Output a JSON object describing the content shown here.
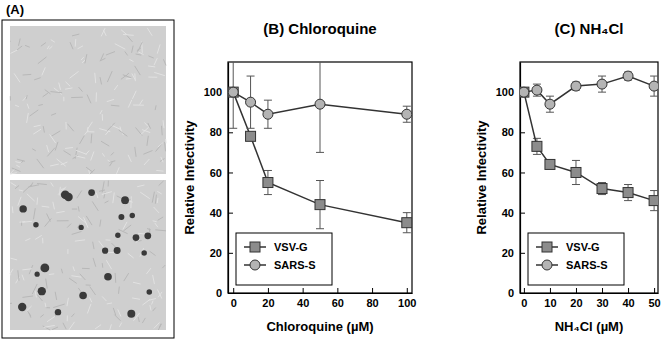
{
  "panel_a": {
    "label": "(A)"
  },
  "chart_data": [
    {
      "type": "line",
      "title": "(B) Chloroquine",
      "x_label": "Chloroquine (µM)",
      "y_label": "Relative Infectivity",
      "x": [
        0,
        10,
        20,
        50,
        100
      ],
      "xlim": [
        -3,
        103
      ],
      "xticks": [
        0,
        20,
        40,
        60,
        80,
        100
      ],
      "ylim": [
        0,
        115
      ],
      "yticks": [
        0,
        20,
        40,
        60,
        80,
        100
      ],
      "legend": "lower left",
      "series": [
        {
          "name": "VSV-G",
          "color": "#8c8c8c",
          "marker": "square",
          "line_style": "solid",
          "values": [
            100,
            78,
            55,
            44,
            35
          ],
          "errors": [
            2,
            1,
            6,
            12,
            5
          ]
        },
        {
          "name": "SARS-S",
          "color": "#b4b4b4",
          "marker": "circle",
          "line_style": "solid",
          "values": [
            100,
            95,
            89,
            94,
            89
          ],
          "errors": [
            18,
            13,
            7,
            24,
            4
          ]
        }
      ]
    },
    {
      "type": "line",
      "title": "(C) NH₄Cl",
      "x_label": "NH₄Cl (µM)",
      "y_label": "Relative Infectivity",
      "x": [
        0,
        5,
        10,
        20,
        30,
        40,
        50
      ],
      "xlim": [
        -1.5,
        51.5
      ],
      "xticks": [
        0,
        10,
        20,
        30,
        40,
        50
      ],
      "ylim": [
        0,
        115
      ],
      "yticks": [
        0,
        20,
        40,
        60,
        80,
        100
      ],
      "legend": "lower left",
      "series": [
        {
          "name": "VSV-G",
          "color": "#8c8c8c",
          "marker": "square",
          "line_style": "solid",
          "values": [
            100,
            73,
            64,
            60,
            52,
            50,
            46
          ],
          "errors": [
            2,
            4,
            2,
            6,
            3,
            4,
            5
          ]
        },
        {
          "name": "SARS-S",
          "color": "#b4b4b4",
          "marker": "circle",
          "line_style": "solid",
          "values": [
            100,
            101,
            94,
            103,
            104,
            108,
            103
          ],
          "errors": [
            2,
            3,
            4,
            2,
            4,
            2,
            5
          ]
        }
      ]
    }
  ]
}
